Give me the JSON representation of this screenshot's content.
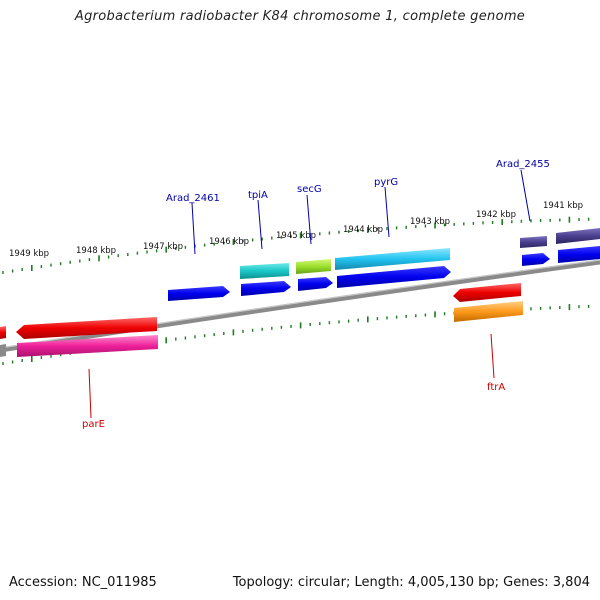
{
  "title": "Agrobacterium radiobacter K84 chromosome 1, complete genome",
  "footer": {
    "accession_label": "Accession:",
    "accession": "NC_011985",
    "topology_label": "Topology:",
    "topology": "circular",
    "length_label": "Length:",
    "length": "4,005,130 bp",
    "genes_label": "Genes:",
    "genes": "3,804"
  },
  "kbp_labels": [
    "1949 kbp",
    "1948 kbp",
    "1947 kbp",
    "1946 kbp",
    "1945 kbp",
    "1944 kbp",
    "1943 kbp",
    "1942 kbp",
    "1941 kbp"
  ],
  "gene_labels": {
    "top": [
      "Arad_2461",
      "tpiA",
      "secG",
      "pyrG",
      "Arad_2455"
    ],
    "bottom": [
      "parE",
      "ftrA"
    ]
  },
  "colors": {
    "label_top": "#0000aa",
    "label_bottom": "#cc0000",
    "ticks": "#1f7a1f",
    "backbone": "#7a7a7a",
    "blue": "#0000ee",
    "cyan_teal": "#1ac7c7",
    "lime": "#9be02b",
    "sky": "#22c4f0",
    "slate": "#4a3f8f",
    "red": "#ee0000",
    "pink": "#ee1f9a",
    "orange": "#ff9a1a"
  }
}
